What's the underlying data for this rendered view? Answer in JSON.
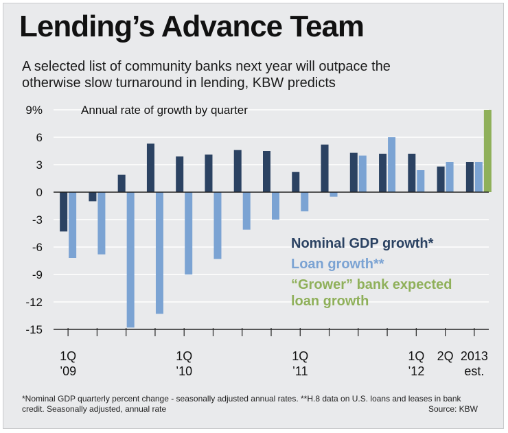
{
  "title": "Lending’s Advance Team",
  "subtitle_lines": [
    "A selected list of community banks next year will outpace the",
    "otherwise slow turnaround in lending, KBW predicts"
  ],
  "footnote": "*Nominal GDP quarterly percent change - seasonally adjusted annual rates. **H.8 data on U.S. loans and leases in bank credit. Seasonally adjusted, annual rate",
  "source": "Source: KBW",
  "colors": {
    "gdp": "#2b4262",
    "loan": "#7ba3d3",
    "grower": "#8fb05a",
    "grid": "#ffffff",
    "axis": "#222222"
  },
  "legend": {
    "gdp": "Nominal GDP growth*",
    "loan": "Loan growth**",
    "grower_line1": "“Grower” bank expected",
    "grower_line2": "loan growth"
  },
  "chart_data": {
    "type": "bar",
    "title": "Annual rate of growth by quarter",
    "ylim": [
      -15,
      9
    ],
    "yticks": [
      9,
      6,
      3,
      0,
      -3,
      -6,
      -9,
      -12,
      -15
    ],
    "ytick_labels": [
      "9%",
      "6",
      "3",
      "0",
      "-3",
      "-6",
      "-9",
      "-12",
      "-15"
    ],
    "categories": [
      "1Q 2009",
      "2Q 2009",
      "3Q 2009",
      "4Q 2009",
      "1Q 2010",
      "2Q 2010",
      "3Q 2010",
      "4Q 2010",
      "1Q 2011",
      "2Q 2011",
      "3Q 2011",
      "4Q 2011",
      "1Q 2012",
      "2Q 2012",
      "2013 est."
    ],
    "x_tick_labels": [
      {
        "index": 0,
        "line1": "1Q",
        "line2": "’09"
      },
      {
        "index": 4,
        "line1": "1Q",
        "line2": "’10"
      },
      {
        "index": 8,
        "line1": "1Q",
        "line2": "’11"
      },
      {
        "index": 12,
        "line1": "1Q",
        "line2": "’12"
      },
      {
        "index": 13,
        "line1": "2Q",
        "line2": ""
      },
      {
        "index": 14,
        "line1": "2013",
        "line2": "est."
      }
    ],
    "series": [
      {
        "name": "Nominal GDP growth*",
        "values": [
          -4.3,
          -1.0,
          1.9,
          5.3,
          3.9,
          4.1,
          4.6,
          4.5,
          2.2,
          5.2,
          4.3,
          4.2,
          4.2,
          2.8,
          3.3
        ]
      },
      {
        "name": "Loan growth**",
        "values": [
          -7.2,
          -6.8,
          -14.8,
          -13.3,
          -9.0,
          -7.3,
          -4.1,
          -3.0,
          -2.1,
          -0.5,
          4.0,
          6.0,
          2.4,
          3.3,
          3.3
        ]
      },
      {
        "name": "“Grower” bank expected loan growth",
        "values": [
          null,
          null,
          null,
          null,
          null,
          null,
          null,
          null,
          null,
          null,
          null,
          null,
          null,
          null,
          9.0
        ]
      }
    ]
  }
}
